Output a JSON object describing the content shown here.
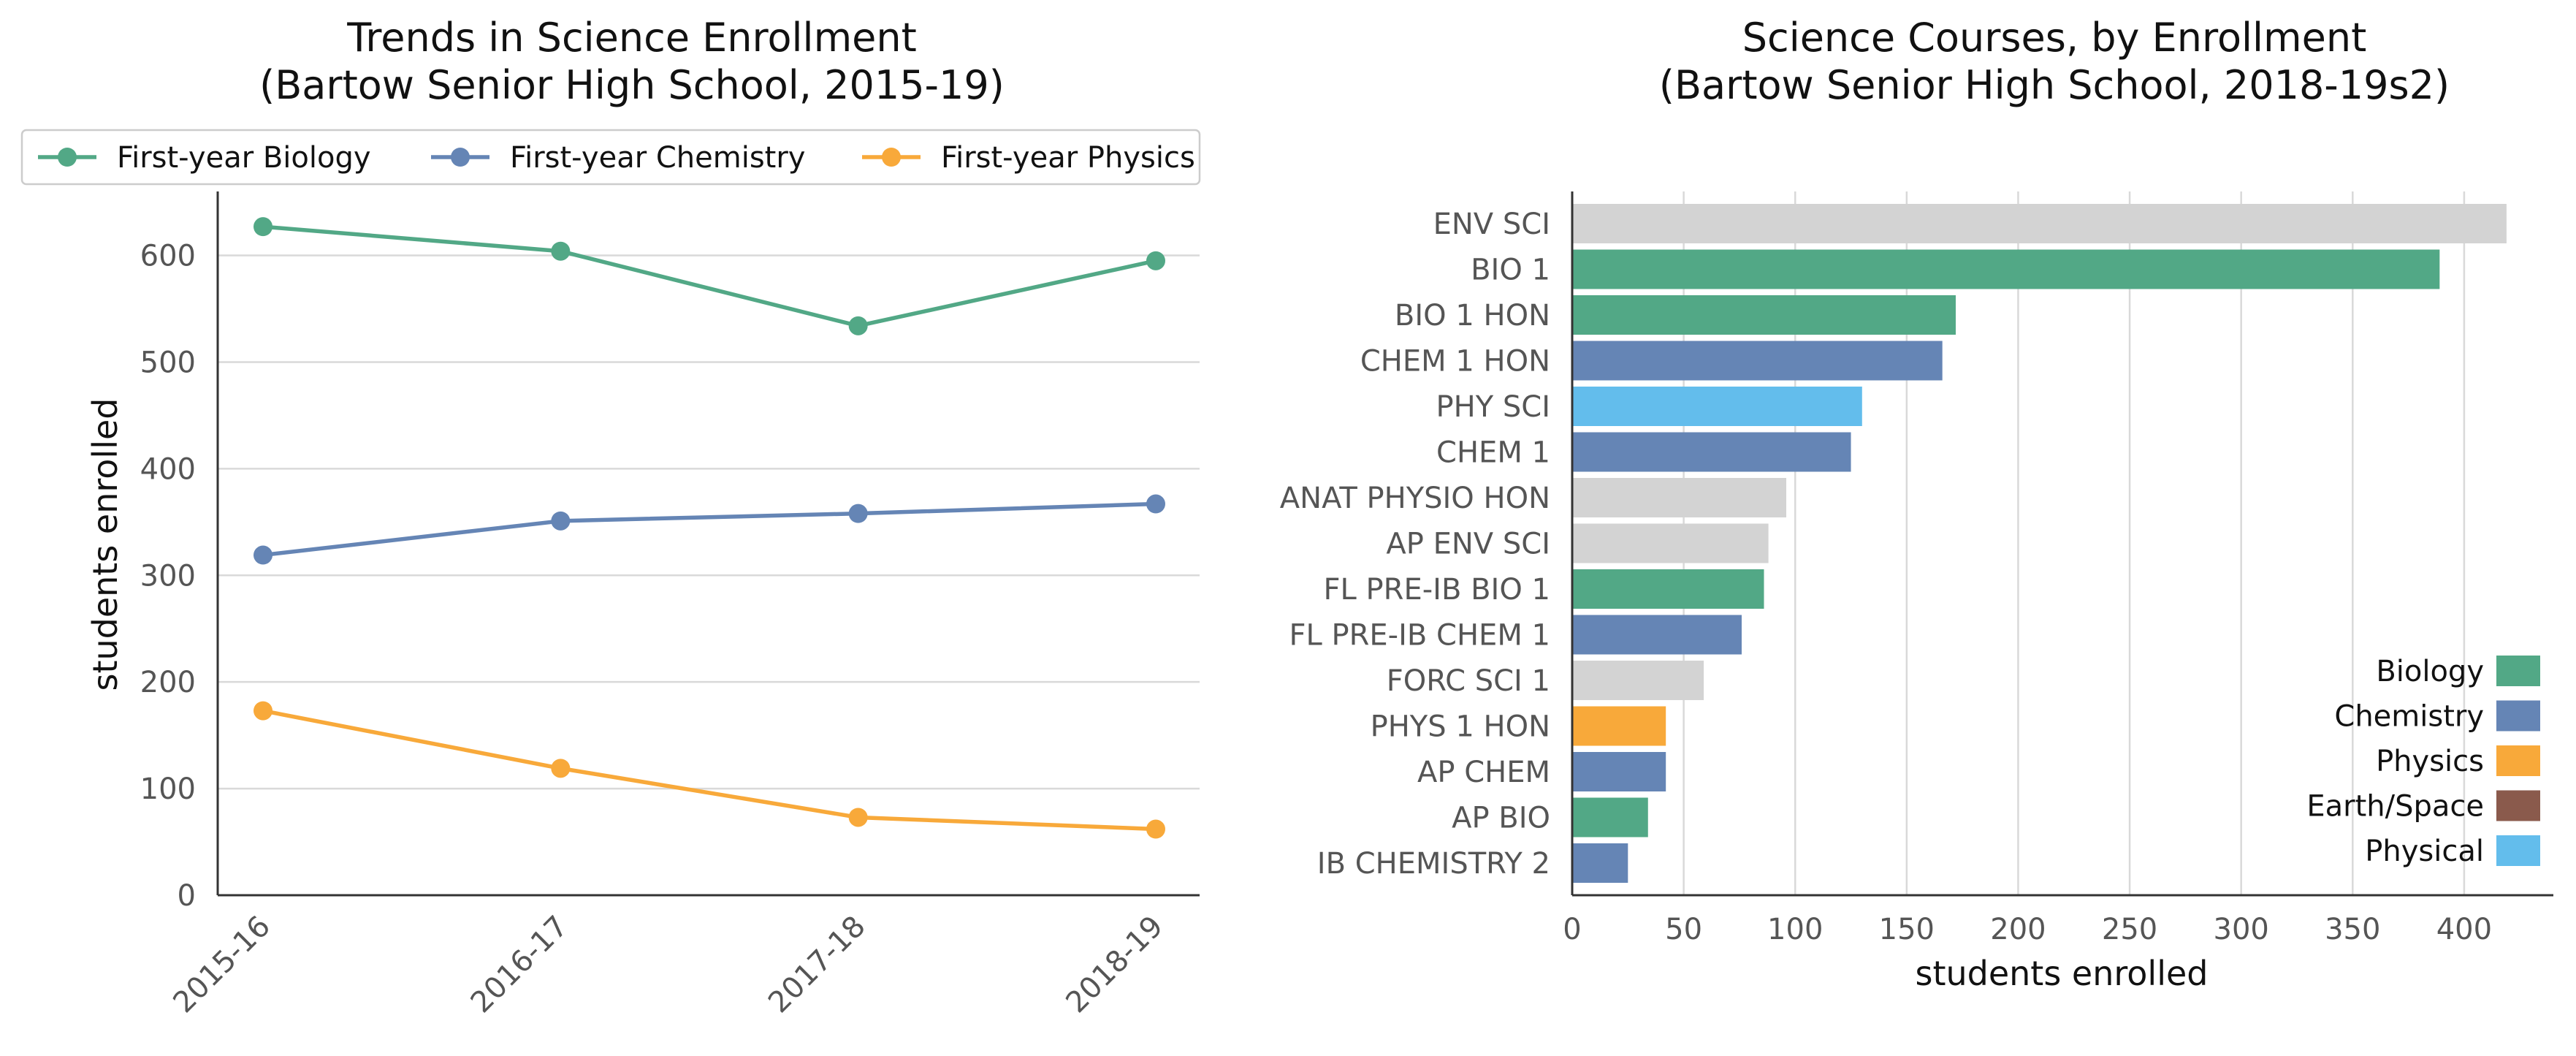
{
  "chart_data": [
    {
      "type": "line",
      "title": "Trends in Science Enrollment",
      "subtitle": "(Bartow Senior High School, 2015-19)",
      "xlabel": "",
      "ylabel": "students enrolled",
      "categories": [
        "2015-16",
        "2016-17",
        "2017-18",
        "2018-19"
      ],
      "ylim": [
        0,
        660
      ],
      "yticks": [
        0,
        100,
        200,
        300,
        400,
        500,
        600
      ],
      "grid": "horizontal",
      "legend_position": "top",
      "series": [
        {
          "name": "First-year Biology",
          "color": "#52a886",
          "values": [
            627,
            604,
            534,
            595
          ]
        },
        {
          "name": "First-year Chemistry",
          "color": "#6585b5",
          "values": [
            319,
            351,
            358,
            367
          ]
        },
        {
          "name": "First-year Physics",
          "color": "#f8a93a",
          "values": [
            173,
            119,
            73,
            62
          ]
        }
      ]
    },
    {
      "type": "bar",
      "orientation": "horizontal",
      "title": "Science Courses, by Enrollment",
      "subtitle": "(Bartow Senior High School, 2018-19s2)",
      "xlabel": "students enrolled",
      "ylabel": "",
      "xlim": [
        0,
        440
      ],
      "xticks": [
        0,
        50,
        100,
        150,
        200,
        250,
        300,
        350,
        400
      ],
      "grid": "vertical",
      "legend_position": "bottom-right",
      "categories": [
        "ENV SCI",
        "BIO 1",
        "BIO 1 HON",
        "CHEM 1 HON",
        "PHY SCI",
        "CHEM 1",
        "ANAT PHYSIO HON",
        "AP ENV SCI",
        "FL PRE-IB BIO 1",
        "FL PRE-IB CHEM 1",
        "FORC SCI 1",
        "PHYS 1 HON",
        "AP CHEM",
        "AP BIO",
        "IB CHEMISTRY 2"
      ],
      "values": [
        419,
        389,
        172,
        166,
        130,
        125,
        96,
        88,
        86,
        76,
        59,
        42,
        42,
        34,
        25
      ],
      "bar_groups": [
        "Other",
        "Biology",
        "Biology",
        "Chemistry",
        "Physical",
        "Chemistry",
        "Other",
        "Other",
        "Biology",
        "Chemistry",
        "Other",
        "Physics",
        "Chemistry",
        "Biology",
        "Chemistry"
      ],
      "legend": [
        {
          "name": "Biology",
          "color": "#52a886"
        },
        {
          "name": "Chemistry",
          "color": "#6585b5"
        },
        {
          "name": "Physics",
          "color": "#f8a93a"
        },
        {
          "name": "Earth/Space",
          "color": "#8a5a4c"
        },
        {
          "name": "Physical",
          "color": "#63bdec"
        }
      ],
      "group_colors": {
        "Other": "#d3d3d3"
      }
    }
  ]
}
